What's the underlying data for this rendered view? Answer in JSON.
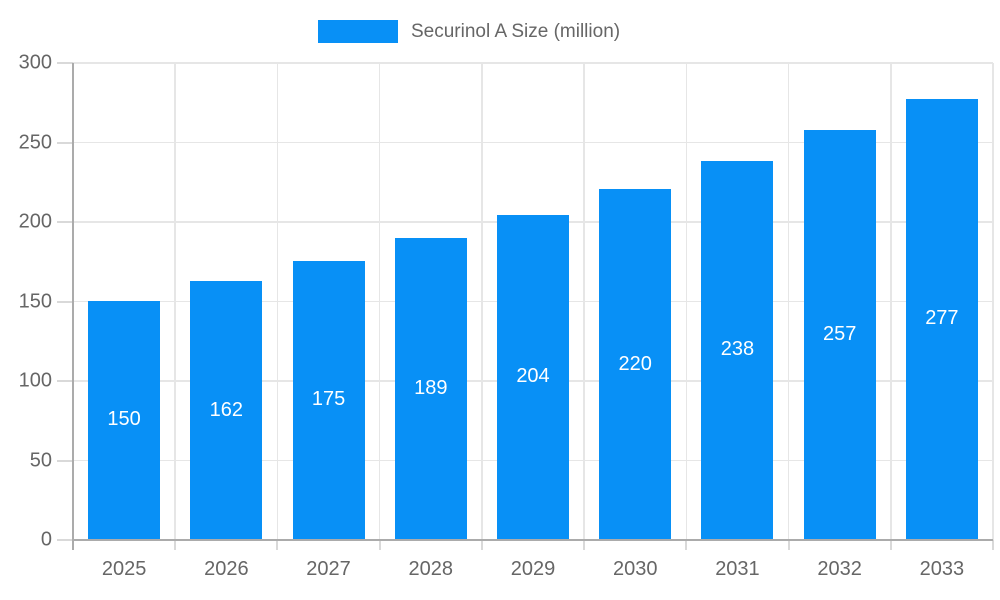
{
  "legend": {
    "label": "Securinol A Size (million)"
  },
  "chart_data": {
    "type": "bar",
    "categories": [
      "2025",
      "2026",
      "2027",
      "2028",
      "2029",
      "2030",
      "2031",
      "2032",
      "2033"
    ],
    "values": [
      150,
      162,
      175,
      189,
      204,
      220,
      238,
      257,
      277
    ],
    "series_name": "Securinol A Size (million)",
    "title": "",
    "xlabel": "",
    "ylabel": "",
    "ylim": [
      0,
      300
    ],
    "yticks": [
      0,
      50,
      100,
      150,
      200,
      250,
      300
    ],
    "grid": true,
    "legend_position": "top-center",
    "value_labels": "inside-center, white"
  },
  "colors": {
    "bar": "#0890f6",
    "gridline": "#e6e6e6",
    "tick": "#d9d9d9",
    "axis": "#ababab",
    "label_text": "#666666",
    "value_label": "#ffffff"
  }
}
